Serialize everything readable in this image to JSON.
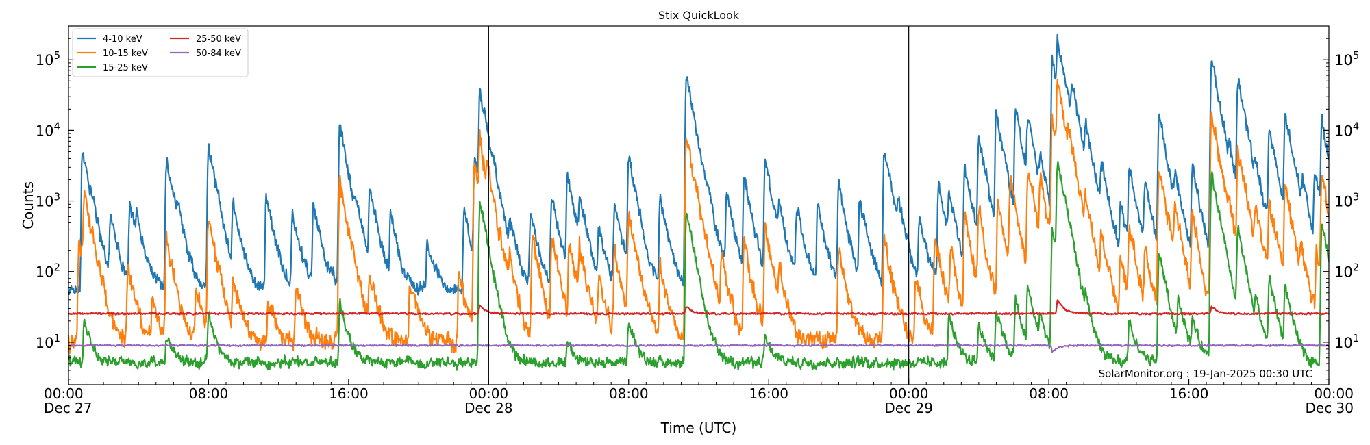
{
  "chart_data": {
    "type": "line",
    "title": "Stix QuickLook",
    "xlabel": "Time (UTC)",
    "ylabel": "Counts",
    "yscale": "log",
    "ylim": [
      2.5,
      300000
    ],
    "xlim_hours": [
      0,
      72
    ],
    "legend_placement": "top-left",
    "day_separators_hours": [
      24,
      48
    ],
    "x_ticks": [
      {
        "hour": 0,
        "time": "00:00",
        "date": "Dec 27"
      },
      {
        "hour": 8,
        "time": "08:00",
        "date": ""
      },
      {
        "hour": 16,
        "time": "16:00",
        "date": ""
      },
      {
        "hour": 24,
        "time": "00:00",
        "date": "Dec 28"
      },
      {
        "hour": 32,
        "time": "08:00",
        "date": ""
      },
      {
        "hour": 40,
        "time": "16:00",
        "date": ""
      },
      {
        "hour": 48,
        "time": "00:00",
        "date": "Dec 29"
      },
      {
        "hour": 56,
        "time": "08:00",
        "date": ""
      },
      {
        "hour": 64,
        "time": "16:00",
        "date": ""
      },
      {
        "hour": 72,
        "time": "00:00",
        "date": "Dec 30"
      }
    ],
    "y_ticks": [
      {
        "value": 10,
        "base": "10",
        "exp": "1"
      },
      {
        "value": 100,
        "base": "10",
        "exp": "2"
      },
      {
        "value": 1000,
        "base": "10",
        "exp": "3"
      },
      {
        "value": 10000,
        "base": "10",
        "exp": "4"
      },
      {
        "value": 100000,
        "base": "10",
        "exp": "5"
      }
    ],
    "series": [
      {
        "name": "4-10 keV",
        "color": "#1f77b4",
        "baseline": 55,
        "noise": 0.22,
        "peaks": [
          [
            0.8,
            5500
          ],
          [
            1.3,
            350
          ],
          [
            2.4,
            600
          ],
          [
            3.5,
            900
          ],
          [
            3.9,
            450
          ],
          [
            5.6,
            3800
          ],
          [
            6.2,
            450
          ],
          [
            8.0,
            6300
          ],
          [
            9.4,
            900
          ],
          [
            11.3,
            1100
          ],
          [
            12.8,
            700
          ],
          [
            14.0,
            900
          ],
          [
            15.5,
            12000
          ],
          [
            16.4,
            500
          ],
          [
            17.2,
            1500
          ],
          [
            18.4,
            600
          ],
          [
            20.5,
            300
          ],
          [
            22.6,
            800
          ],
          [
            23.5,
            36000
          ],
          [
            23.2,
            3800
          ],
          [
            24.3,
            600
          ],
          [
            25.2,
            400
          ],
          [
            26.4,
            700
          ],
          [
            27.6,
            1100
          ],
          [
            28.5,
            2300
          ],
          [
            29.2,
            1000
          ],
          [
            30.3,
            400
          ],
          [
            31.2,
            900
          ],
          [
            32.0,
            4300
          ],
          [
            33.8,
            1100
          ],
          [
            35.3,
            57000
          ],
          [
            36.4,
            500
          ],
          [
            37.6,
            1200
          ],
          [
            38.6,
            2100
          ],
          [
            39.8,
            3800
          ],
          [
            40.6,
            600
          ],
          [
            41.6,
            800
          ],
          [
            42.8,
            900
          ],
          [
            44.0,
            1600
          ],
          [
            45.2,
            1100
          ],
          [
            46.6,
            5300
          ],
          [
            47.4,
            700
          ],
          [
            48.6,
            600
          ],
          [
            49.7,
            1600
          ],
          [
            50.3,
            1200
          ],
          [
            51.2,
            3000
          ],
          [
            52.0,
            8000
          ],
          [
            53.0,
            18000
          ],
          [
            54.1,
            19000
          ],
          [
            54.8,
            14000
          ],
          [
            55.5,
            3000
          ],
          [
            56.2,
            90000
          ],
          [
            56.5,
            170000
          ],
          [
            57.3,
            33000
          ],
          [
            58.1,
            9000
          ],
          [
            59.0,
            3000
          ],
          [
            60.1,
            900
          ],
          [
            60.6,
            3000
          ],
          [
            61.5,
            1700
          ],
          [
            62.3,
            17000
          ],
          [
            63.2,
            1500
          ],
          [
            64.2,
            3000
          ],
          [
            65.3,
            97000
          ],
          [
            66.3,
            2500
          ],
          [
            66.8,
            55000
          ],
          [
            67.8,
            1800
          ],
          [
            68.6,
            11000
          ],
          [
            69.5,
            17000
          ],
          [
            70.5,
            1200
          ],
          [
            71.2,
            2500
          ],
          [
            71.6,
            12000
          ]
        ]
      },
      {
        "name": "10-15 keV",
        "color": "#ff7f0e",
        "baseline": 10,
        "noise": 0.3,
        "peaks": [
          [
            0.6,
            300
          ],
          [
            0.9,
            1200
          ],
          [
            1.8,
            30
          ],
          [
            3.4,
            120
          ],
          [
            4.8,
            40
          ],
          [
            5.6,
            300
          ],
          [
            7.3,
            60
          ],
          [
            8.0,
            600
          ],
          [
            9.4,
            80
          ],
          [
            11.4,
            40
          ],
          [
            13.0,
            70
          ],
          [
            15.5,
            1800
          ],
          [
            17.2,
            100
          ],
          [
            19.5,
            80
          ],
          [
            22.3,
            90
          ],
          [
            23.2,
            3800
          ],
          [
            23.5,
            6000
          ],
          [
            23.9,
            1300
          ],
          [
            25.2,
            100
          ],
          [
            26.5,
            300
          ],
          [
            27.6,
            300
          ],
          [
            28.6,
            250
          ],
          [
            29.2,
            200
          ],
          [
            30.3,
            80
          ],
          [
            31.2,
            200
          ],
          [
            32.0,
            700
          ],
          [
            33.8,
            120
          ],
          [
            35.3,
            8000
          ],
          [
            35.9,
            200
          ],
          [
            37.3,
            150
          ],
          [
            38.6,
            250
          ],
          [
            39.8,
            400
          ],
          [
            40.6,
            80
          ],
          [
            44.0,
            200
          ],
          [
            46.6,
            300
          ],
          [
            48.4,
            80
          ],
          [
            49.5,
            300
          ],
          [
            50.4,
            200
          ],
          [
            51.2,
            600
          ],
          [
            52.0,
            700
          ],
          [
            53.1,
            1000
          ],
          [
            53.8,
            2000
          ],
          [
            54.8,
            2800
          ],
          [
            55.5,
            1800
          ],
          [
            56.2,
            15000
          ],
          [
            56.5,
            45000
          ],
          [
            57.1,
            4000
          ],
          [
            58.1,
            700
          ],
          [
            59.0,
            300
          ],
          [
            60.1,
            150
          ],
          [
            60.6,
            400
          ],
          [
            61.5,
            200
          ],
          [
            62.3,
            3000
          ],
          [
            63.2,
            700
          ],
          [
            64.2,
            600
          ],
          [
            65.3,
            16000
          ],
          [
            66.3,
            300
          ],
          [
            66.8,
            5000
          ],
          [
            67.8,
            700
          ],
          [
            68.6,
            900
          ],
          [
            69.5,
            1500
          ],
          [
            70.4,
            150
          ],
          [
            71.3,
            200
          ],
          [
            71.6,
            2300
          ]
        ]
      },
      {
        "name": "15-25 keV",
        "color": "#2ca02c",
        "baseline": 5.2,
        "noise": 0.18,
        "peaks": [
          [
            0.9,
            20
          ],
          [
            5.6,
            12
          ],
          [
            8.0,
            25
          ],
          [
            15.5,
            40
          ],
          [
            23.5,
            1000
          ],
          [
            28.5,
            10
          ],
          [
            32.0,
            20
          ],
          [
            35.3,
            700
          ],
          [
            39.8,
            12
          ],
          [
            50.3,
            25
          ],
          [
            52.0,
            20
          ],
          [
            53.0,
            30
          ],
          [
            54.1,
            40
          ],
          [
            54.8,
            60
          ],
          [
            55.5,
            20
          ],
          [
            56.2,
            400
          ],
          [
            56.5,
            3500
          ],
          [
            57.0,
            80
          ],
          [
            58.1,
            25
          ],
          [
            60.6,
            20
          ],
          [
            62.3,
            200
          ],
          [
            63.4,
            40
          ],
          [
            64.2,
            20
          ],
          [
            65.3,
            2500
          ],
          [
            66.8,
            400
          ],
          [
            67.8,
            30
          ],
          [
            68.6,
            80
          ],
          [
            69.5,
            60
          ],
          [
            71.6,
            500
          ]
        ]
      },
      {
        "name": "25-50 keV",
        "color": "#d62728",
        "baseline": 25.5,
        "noise": 0.03,
        "peaks": [
          [
            23.5,
            33
          ],
          [
            35.3,
            32
          ],
          [
            56.5,
            40
          ],
          [
            65.3,
            32
          ]
        ]
      },
      {
        "name": "50-84 keV",
        "color": "#9467bd",
        "baseline": 9.0,
        "noise": 0.025,
        "peaks": [
          [
            56.2,
            7.2
          ]
        ]
      }
    ],
    "annotation": "SolarMonitor.org : 19-Jan-2025 00:30 UTC"
  }
}
